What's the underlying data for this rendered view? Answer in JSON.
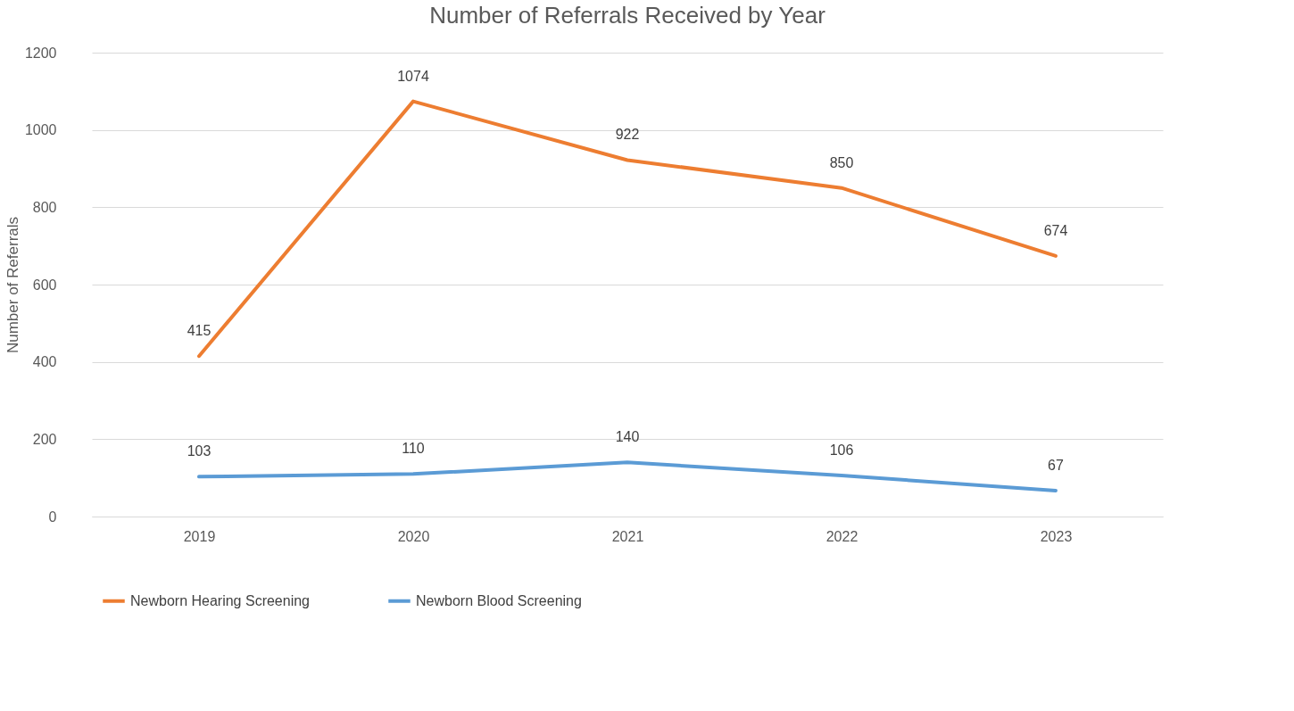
{
  "chart_data": {
    "type": "line",
    "title": "Number of Referrals Received by Year",
    "ylabel": "Number of Referrals",
    "categories": [
      "2019",
      "2020",
      "2021",
      "2022",
      "2023"
    ],
    "series": [
      {
        "name": "Newborn Hearing Screening",
        "color": "#ed7d31",
        "values": [
          415,
          1074,
          922,
          850,
          674
        ]
      },
      {
        "name": "Newborn Blood Screening",
        "color": "#5b9bd5",
        "values": [
          103,
          110,
          140,
          106,
          67
        ]
      }
    ],
    "ylim": [
      0,
      1200
    ],
    "yticks": [
      0,
      200,
      400,
      600,
      800,
      1000,
      1200
    ],
    "grid": "y",
    "legend": "bottom left",
    "data_labels": true
  }
}
